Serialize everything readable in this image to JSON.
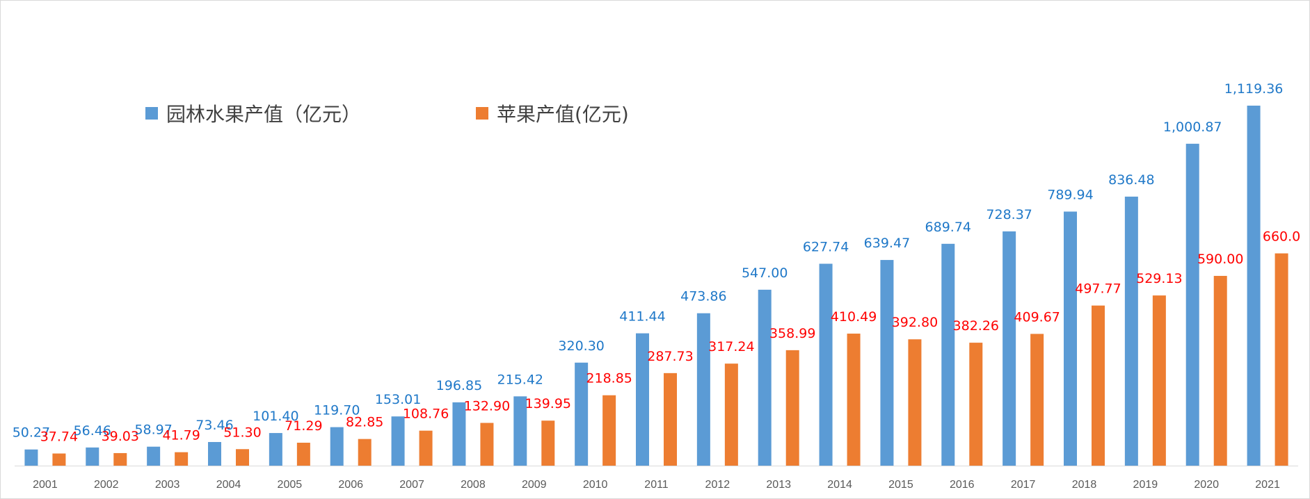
{
  "chart_data": {
    "type": "bar",
    "categories": [
      "2001",
      "2002",
      "2003",
      "2004",
      "2005",
      "2006",
      "2007",
      "2008",
      "2009",
      "2010",
      "2011",
      "2012",
      "2013",
      "2014",
      "2015",
      "2016",
      "2017",
      "2018",
      "2019",
      "2020",
      "2021"
    ],
    "series": [
      {
        "name": "园林水果产值（亿元）",
        "color": "#5b9bd5",
        "label_color": "#1f78c8",
        "values": [
          50.27,
          56.46,
          58.97,
          73.46,
          101.4,
          119.7,
          153.01,
          196.85,
          215.42,
          320.3,
          411.44,
          473.86,
          547.0,
          627.74,
          639.47,
          689.74,
          728.37,
          789.94,
          836.48,
          1000.87,
          1119.36
        ],
        "labels": [
          "50.27",
          "56.46",
          "58.97",
          "73.46",
          "101.40",
          "119.70",
          "153.01",
          "196.85",
          "215.42",
          "320.30",
          "411.44",
          "473.86",
          "547.00",
          "627.74",
          "639.47",
          "689.74",
          "728.37",
          "789.94",
          "836.48",
          "1,000.87",
          "1,119.36"
        ]
      },
      {
        "name": "苹果产值(亿元)",
        "color": "#ed7d31",
        "label_color": "#ff0000",
        "values": [
          37.74,
          39.03,
          41.79,
          51.3,
          71.29,
          82.85,
          108.76,
          132.9,
          139.95,
          218.85,
          287.73,
          317.24,
          358.99,
          410.49,
          392.8,
          382.26,
          409.67,
          497.77,
          529.13,
          590.0,
          660.0
        ],
        "labels": [
          "37.74",
          "39.03",
          "41.79",
          "51.30",
          "71.29",
          "82.85",
          "108.76",
          "132.90",
          "139.95",
          "218.85",
          "287.73",
          "317.24",
          "358.99",
          "410.49",
          "392.80",
          "382.26",
          "409.67",
          "497.77",
          "529.13",
          "590.00",
          "660.0"
        ]
      }
    ],
    "ylim": [
      0,
      1150
    ],
    "grid": false,
    "legend_position": "top-left",
    "title": "",
    "xlabel": "",
    "ylabel": ""
  }
}
